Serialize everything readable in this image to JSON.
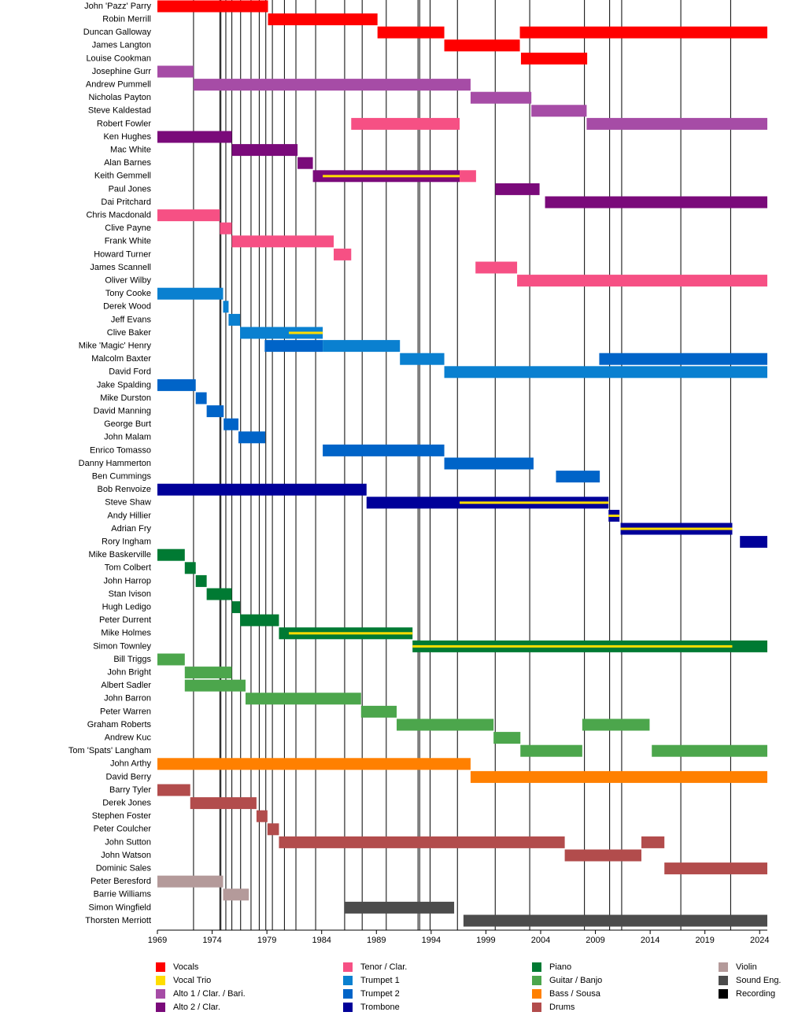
{
  "chart_data": {
    "type": "timeline",
    "xlim": [
      1969,
      2024.7
    ],
    "xticks": [
      1969,
      1974,
      1979,
      1984,
      1989,
      1994,
      1999,
      2004,
      2009,
      2014,
      2019,
      2024
    ],
    "roles": [
      {
        "name": "Vocals",
        "color": "#ff0000"
      },
      {
        "name": "Vocal Trio",
        "color": "#ffdd00"
      },
      {
        "name": "Alto 1 / Clar. / Bari.",
        "color": "#a64ca6"
      },
      {
        "name": "Alto 2 / Clar.",
        "color": "#7a0a7a"
      },
      {
        "name": "Tenor / Clar.",
        "color": "#f65084"
      },
      {
        "name": "Trumpet 1",
        "color": "#0a80d0"
      },
      {
        "name": "Trumpet 2",
        "color": "#0064c8"
      },
      {
        "name": "Trombone",
        "color": "#000099"
      },
      {
        "name": "Piano",
        "color": "#007a33"
      },
      {
        "name": "Guitar / Banjo",
        "color": "#4ca64c"
      },
      {
        "name": "Bass / Sousa",
        "color": "#ff8000"
      },
      {
        "name": "Drums",
        "color": "#b24c4c"
      },
      {
        "name": "Violin",
        "color": "#b49a9a"
      },
      {
        "name": "Sound Eng.",
        "color": "#4c4c4c"
      },
      {
        "name": "Recording",
        "color": "#000000"
      }
    ],
    "recordings": [
      1972.3,
      1974.7,
      1974.8,
      1975.25,
      1975.8,
      1976.6,
      1977.55,
      1978.3,
      1978.9,
      1979.5,
      1980.6,
      1981.65,
      1983.45,
      1986.1,
      1987.7,
      1989.9,
      1992.8,
      1992.95,
      1993.9,
      1996.4,
      1999.85,
      2003.0,
      2008.0,
      2010.3,
      2011.4,
      2016.8,
      2021.35
    ],
    "members": [
      {
        "name": "John 'Pazz' Parry",
        "periods": [
          {
            "role": 0,
            "start": 1969,
            "end": 1979.1
          }
        ]
      },
      {
        "name": "Robin Merrill",
        "periods": [
          {
            "role": 0,
            "start": 1979.1,
            "end": 1989.1
          }
        ]
      },
      {
        "name": "Duncan Galloway",
        "periods": [
          {
            "role": 0,
            "start": 1989.1,
            "end": 1995.2
          },
          {
            "role": 0,
            "start": 2002.1,
            "end": 2024.7
          }
        ]
      },
      {
        "name": "James Langton",
        "periods": [
          {
            "role": 0,
            "start": 1995.2,
            "end": 2002.1
          }
        ]
      },
      {
        "name": "Louise Cookman",
        "periods": [
          {
            "role": 0,
            "start": 2002.2,
            "end": 2008.25
          }
        ]
      },
      {
        "name": "Josephine Gurr",
        "periods": [
          {
            "role": 2,
            "start": 1969,
            "end": 1972.3
          }
        ]
      },
      {
        "name": "Andrew Pummell",
        "periods": [
          {
            "role": 2,
            "start": 1972.3,
            "end": 1997.6
          }
        ]
      },
      {
        "name": "Nicholas Payton",
        "periods": [
          {
            "role": 2,
            "start": 1997.6,
            "end": 2003.15
          }
        ]
      },
      {
        "name": "Steve Kaldestad",
        "periods": [
          {
            "role": 2,
            "start": 2003.15,
            "end": 2008.2
          }
        ]
      },
      {
        "name": "Robert Fowler",
        "periods": [
          {
            "role": 4,
            "start": 1986.7,
            "end": 1996.6
          },
          {
            "role": 2,
            "start": 2008.2,
            "end": 2024.7
          }
        ]
      },
      {
        "name": "Ken Hughes",
        "periods": [
          {
            "role": 3,
            "start": 1969,
            "end": 1975.8
          }
        ]
      },
      {
        "name": "Mac White",
        "periods": [
          {
            "role": 3,
            "start": 1975.8,
            "end": 1981.8
          }
        ]
      },
      {
        "name": "Alan Barnes",
        "periods": [
          {
            "role": 3,
            "start": 1981.8,
            "end": 1983.2
          }
        ]
      },
      {
        "name": "Keith Gemmell",
        "periods": [
          {
            "role": 3,
            "start": 1983.2,
            "end": 1996.6
          },
          {
            "role": 4,
            "start": 1996.6,
            "end": 1998.1
          },
          {
            "role": 1,
            "start": 1984.1,
            "end": 1996.6
          }
        ]
      },
      {
        "name": "Paul Jones",
        "periods": [
          {
            "role": 3,
            "start": 1999.85,
            "end": 2003.9
          }
        ]
      },
      {
        "name": "Dai Pritchard",
        "periods": [
          {
            "role": 3,
            "start": 2004.4,
            "end": 2024.7
          }
        ]
      },
      {
        "name": "Chris Macdonald",
        "periods": [
          {
            "role": 4,
            "start": 1969,
            "end": 1974.7
          }
        ]
      },
      {
        "name": "Clive Payne",
        "periods": [
          {
            "role": 4,
            "start": 1974.7,
            "end": 1975.8
          }
        ]
      },
      {
        "name": "Frank White",
        "periods": [
          {
            "role": 4,
            "start": 1975.8,
            "end": 1985.1
          }
        ]
      },
      {
        "name": "Howard Turner",
        "periods": [
          {
            "role": 4,
            "start": 1985.1,
            "end": 1986.7
          }
        ]
      },
      {
        "name": "James Scannell",
        "periods": [
          {
            "role": 4,
            "start": 1998.05,
            "end": 2001.85
          }
        ]
      },
      {
        "name": "Oliver Wilby",
        "periods": [
          {
            "role": 4,
            "start": 2001.85,
            "end": 2024.7
          }
        ]
      },
      {
        "name": "Tony Cooke",
        "periods": [
          {
            "role": 5,
            "start": 1969,
            "end": 1975.0
          }
        ]
      },
      {
        "name": "Derek Wood",
        "periods": [
          {
            "role": 5,
            "start": 1975.0,
            "end": 1975.5
          }
        ]
      },
      {
        "name": "Jeff Evans",
        "periods": [
          {
            "role": 5,
            "start": 1975.5,
            "end": 1976.55
          }
        ]
      },
      {
        "name": "Clive Baker",
        "periods": [
          {
            "role": 5,
            "start": 1976.55,
            "end": 1984.1
          },
          {
            "role": 1,
            "start": 1981.0,
            "end": 1984.1
          }
        ]
      },
      {
        "name": "Mike 'Magic' Henry",
        "periods": [
          {
            "role": 6,
            "start": 1978.8,
            "end": 1984.1
          },
          {
            "role": 5,
            "start": 1984.1,
            "end": 1991.15
          }
        ]
      },
      {
        "name": "Malcolm Baxter",
        "periods": [
          {
            "role": 5,
            "start": 1991.15,
            "end": 1995.2
          },
          {
            "role": 6,
            "start": 2009.35,
            "end": 2024.7
          }
        ]
      },
      {
        "name": "David Ford",
        "periods": [
          {
            "role": 5,
            "start": 1995.2,
            "end": 2024.7
          }
        ]
      },
      {
        "name": "Jake Spalding",
        "periods": [
          {
            "role": 6,
            "start": 1969,
            "end": 1972.5
          }
        ]
      },
      {
        "name": "Mike Durston",
        "periods": [
          {
            "role": 6,
            "start": 1972.5,
            "end": 1973.5
          }
        ]
      },
      {
        "name": "David Manning",
        "periods": [
          {
            "role": 6,
            "start": 1973.5,
            "end": 1975.05
          }
        ]
      },
      {
        "name": "George Burt",
        "periods": [
          {
            "role": 6,
            "start": 1975.05,
            "end": 1976.4
          }
        ]
      },
      {
        "name": "John Malam",
        "periods": [
          {
            "role": 6,
            "start": 1976.4,
            "end": 1978.85
          }
        ]
      },
      {
        "name": "Enrico Tomasso",
        "periods": [
          {
            "role": 6,
            "start": 1984.1,
            "end": 1995.2
          }
        ]
      },
      {
        "name": "Danny Hammerton",
        "periods": [
          {
            "role": 6,
            "start": 1995.2,
            "end": 2003.35
          }
        ]
      },
      {
        "name": "Ben Cummings",
        "periods": [
          {
            "role": 6,
            "start": 2005.4,
            "end": 2009.4
          }
        ]
      },
      {
        "name": "Bob Renvoize",
        "periods": [
          {
            "role": 7,
            "start": 1969,
            "end": 1988.1
          }
        ]
      },
      {
        "name": "Steve Shaw",
        "periods": [
          {
            "role": 7,
            "start": 1988.1,
            "end": 2010.2
          },
          {
            "role": 1,
            "start": 1996.6,
            "end": 2010.2
          }
        ]
      },
      {
        "name": "Andy Hillier",
        "periods": [
          {
            "role": 7,
            "start": 2010.2,
            "end": 2011.2
          },
          {
            "role": 1,
            "start": 2010.2,
            "end": 2011.2
          }
        ]
      },
      {
        "name": "Adrian Fry",
        "periods": [
          {
            "role": 7,
            "start": 2011.3,
            "end": 2021.5
          },
          {
            "role": 1,
            "start": 2011.3,
            "end": 2021.5
          }
        ]
      },
      {
        "name": "Rory Ingham",
        "periods": [
          {
            "role": 7,
            "start": 2022.2,
            "end": 2024.7
          }
        ]
      },
      {
        "name": "Mike Baskerville",
        "periods": [
          {
            "role": 8,
            "start": 1969,
            "end": 1971.5
          }
        ]
      },
      {
        "name": "Tom Colbert",
        "periods": [
          {
            "role": 8,
            "start": 1971.5,
            "end": 1972.5
          }
        ]
      },
      {
        "name": "John Harrop",
        "periods": [
          {
            "role": 8,
            "start": 1972.5,
            "end": 1973.5
          }
        ]
      },
      {
        "name": "Stan Ivison",
        "periods": [
          {
            "role": 8,
            "start": 1973.5,
            "end": 1975.8
          }
        ]
      },
      {
        "name": "Hugh Ledigo",
        "periods": [
          {
            "role": 8,
            "start": 1975.8,
            "end": 1976.55
          }
        ]
      },
      {
        "name": "Peter Durrent",
        "periods": [
          {
            "role": 8,
            "start": 1976.55,
            "end": 1980.1
          }
        ]
      },
      {
        "name": "Mike Holmes",
        "periods": [
          {
            "role": 8,
            "start": 1980.1,
            "end": 1992.3
          },
          {
            "role": 1,
            "start": 1981.0,
            "end": 1992.3
          }
        ]
      },
      {
        "name": "Simon Townley",
        "periods": [
          {
            "role": 8,
            "start": 1992.3,
            "end": 2024.7
          },
          {
            "role": 1,
            "start": 1992.3,
            "end": 2021.5
          }
        ]
      },
      {
        "name": "Bill Triggs",
        "periods": [
          {
            "role": 9,
            "start": 1969,
            "end": 1971.5
          }
        ]
      },
      {
        "name": "John Bright",
        "periods": [
          {
            "role": 9,
            "start": 1971.5,
            "end": 1975.8
          }
        ]
      },
      {
        "name": "Albert Sadler",
        "periods": [
          {
            "role": 9,
            "start": 1971.5,
            "end": 1977.05
          }
        ]
      },
      {
        "name": "John Barron",
        "periods": [
          {
            "role": 9,
            "start": 1977.05,
            "end": 1987.6
          }
        ]
      },
      {
        "name": "Peter Warren",
        "periods": [
          {
            "role": 9,
            "start": 1987.6,
            "end": 1990.85
          }
        ]
      },
      {
        "name": "Graham Roberts",
        "periods": [
          {
            "role": 9,
            "start": 1990.85,
            "end": 1999.7
          },
          {
            "role": 9,
            "start": 2007.8,
            "end": 2013.95
          }
        ]
      },
      {
        "name": "Andrew Kuc",
        "periods": [
          {
            "role": 9,
            "start": 1999.7,
            "end": 2002.15
          }
        ]
      },
      {
        "name": "Tom 'Spats' Langham",
        "periods": [
          {
            "role": 9,
            "start": 2002.15,
            "end": 2007.8
          },
          {
            "role": 9,
            "start": 2014.15,
            "end": 2024.7
          }
        ]
      },
      {
        "name": "John Arthy",
        "periods": [
          {
            "role": 10,
            "start": 1969,
            "end": 1997.6
          }
        ]
      },
      {
        "name": "David Berry",
        "periods": [
          {
            "role": 10,
            "start": 1997.6,
            "end": 2024.7
          }
        ]
      },
      {
        "name": "Barry Tyler",
        "periods": [
          {
            "role": 11,
            "start": 1969,
            "end": 1972.0
          }
        ]
      },
      {
        "name": "Derek Jones",
        "periods": [
          {
            "role": 11,
            "start": 1972.0,
            "end": 1978.05
          }
        ]
      },
      {
        "name": "Stephen Foster",
        "periods": [
          {
            "role": 11,
            "start": 1978.05,
            "end": 1979.05
          }
        ]
      },
      {
        "name": "Peter Coulcher",
        "periods": [
          {
            "role": 11,
            "start": 1979.05,
            "end": 1980.1
          }
        ]
      },
      {
        "name": "John Sutton",
        "periods": [
          {
            "role": 11,
            "start": 1980.1,
            "end": 2006.2
          },
          {
            "role": 11,
            "start": 2013.2,
            "end": 2015.3
          }
        ]
      },
      {
        "name": "John Watson",
        "periods": [
          {
            "role": 11,
            "start": 2006.2,
            "end": 2013.2
          }
        ]
      },
      {
        "name": "Dominic Sales",
        "periods": [
          {
            "role": 11,
            "start": 2015.3,
            "end": 2024.7
          }
        ]
      },
      {
        "name": "Peter Beresford",
        "periods": [
          {
            "role": 12,
            "start": 1969,
            "end": 1975.0
          }
        ]
      },
      {
        "name": "Barrie Williams",
        "periods": [
          {
            "role": 12,
            "start": 1975.0,
            "end": 1977.35
          }
        ]
      },
      {
        "name": "Simon Wingfield",
        "periods": [
          {
            "role": 13,
            "start": 1986.05,
            "end": 1996.1
          }
        ]
      },
      {
        "name": "Thorsten Merriott",
        "periods": [
          {
            "role": 13,
            "start": 1996.95,
            "end": 2024.7
          }
        ]
      }
    ]
  }
}
